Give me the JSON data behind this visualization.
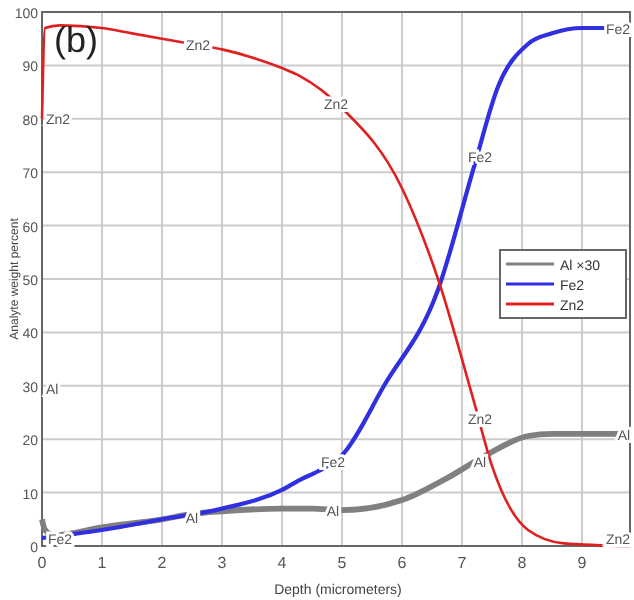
{
  "chart_data": {
    "type": "line",
    "xlabel": "Depth (micrometers)",
    "ylabel": "Analyte weight percent",
    "xlim": [
      0,
      9.8
    ],
    "ylim": [
      0,
      100
    ],
    "xticks": [
      0,
      1,
      2,
      3,
      4,
      5,
      6,
      7,
      8,
      9
    ],
    "yticks": [
      0,
      10,
      20,
      30,
      40,
      50,
      60,
      70,
      80,
      90,
      100
    ],
    "grid": true,
    "legend": "right",
    "line_style": "solid",
    "series": [
      {
        "name": "Al ×30",
        "color": "#808080",
        "x": [
          0,
          0.05,
          0.2,
          1,
          2,
          2.5,
          3,
          4,
          4.5,
          5,
          6,
          6.7,
          7.4,
          8.1,
          8.5,
          9,
          9.8
        ],
        "values": [
          5,
          3,
          2,
          3.5,
          5,
          6,
          6.5,
          7,
          7,
          6.7,
          8.6,
          12.4,
          17,
          20.6,
          21,
          21,
          21
        ]
      },
      {
        "name": "Fe2",
        "color": "#3030e0",
        "x": [
          0,
          1,
          2,
          3,
          4,
          4.3,
          4.6,
          5,
          5.7,
          6.6,
          7.2,
          7.6,
          8.1,
          8.5,
          9,
          9.8
        ],
        "values": [
          1.5,
          3,
          5,
          7,
          10.5,
          12.4,
          14,
          17,
          30,
          48,
          71,
          86,
          94,
          96,
          97,
          97
        ]
      },
      {
        "name": "Zn2",
        "color": "#e02020",
        "x": [
          0,
          0.05,
          0.3,
          1,
          1.5,
          2,
          2.5,
          3,
          3.5,
          4,
          4.3,
          5,
          6,
          6.6,
          7.2,
          7.5,
          8.1,
          8.7,
          9.8
        ],
        "values": [
          80,
          97,
          97.5,
          97,
          96,
          95,
          94,
          93,
          91.5,
          89.5,
          88,
          82,
          67,
          50,
          27,
          15,
          3,
          0.5,
          0
        ]
      }
    ],
    "annotations": [
      "(b)",
      "Zn2",
      "Al",
      {
        "text": "Zn2",
        "x": 2.6,
        "y": 94
      },
      {
        "text": "Zn2",
        "x": 4.9,
        "y": 83
      },
      {
        "text": "Zn2",
        "x": 7.3,
        "y": 24
      },
      {
        "text": "Zn2",
        "x": 9.6,
        "y": 1.5
      },
      {
        "text": "Fe2",
        "x": 0.3,
        "y": 1.5
      },
      {
        "text": "Fe2",
        "x": 4.85,
        "y": 16
      },
      {
        "text": "Fe2",
        "x": 7.3,
        "y": 73
      },
      {
        "text": "Fe2",
        "x": 9.6,
        "y": 97
      },
      {
        "text": "Al",
        "x": 2.5,
        "y": 5.5
      },
      {
        "text": "Al",
        "x": 4.85,
        "y": 6.7
      },
      {
        "text": "Al",
        "x": 7.3,
        "y": 16
      },
      {
        "text": "Al",
        "x": 9.7,
        "y": 21
      }
    ]
  }
}
